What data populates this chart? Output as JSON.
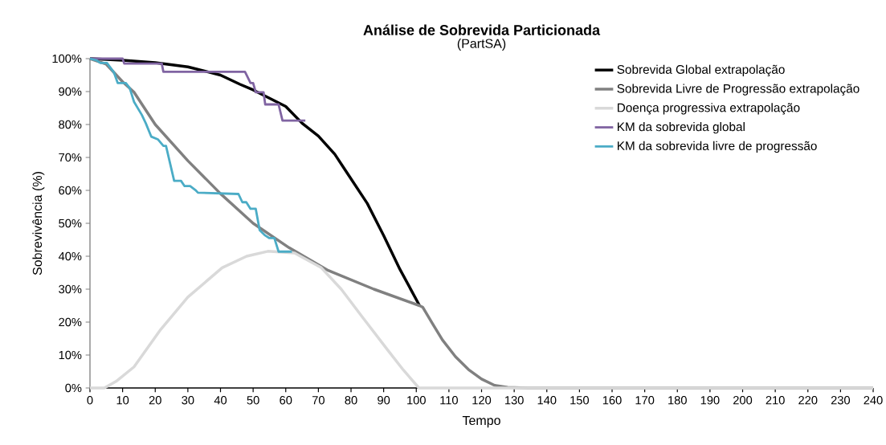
{
  "chart_data": {
    "type": "line",
    "title": "Análise de Sobrevida Particionada",
    "subtitle": "(PartSA)",
    "xlabel": "Tempo",
    "ylabel": "Sobrevivência (%)",
    "xlim": [
      0,
      240
    ],
    "xticks": [
      0,
      10,
      20,
      30,
      40,
      50,
      60,
      70,
      80,
      90,
      100,
      110,
      120,
      130,
      140,
      150,
      160,
      170,
      180,
      190,
      200,
      210,
      220,
      230,
      240
    ],
    "ylim": [
      0,
      100
    ],
    "yticks": [
      {
        "value": 0,
        "label": "0%"
      },
      {
        "value": 10,
        "label": "10%"
      },
      {
        "value": 20,
        "label": "20%"
      },
      {
        "value": 30,
        "label": "30%"
      },
      {
        "value": 40,
        "label": "40%"
      },
      {
        "value": 50,
        "label": "50%"
      },
      {
        "value": 60,
        "label": "60%"
      },
      {
        "value": 70,
        "label": "70%"
      },
      {
        "value": 80,
        "label": "80%"
      },
      {
        "value": 90,
        "label": "90%"
      },
      {
        "value": 100,
        "label": "100%"
      }
    ],
    "grid": false,
    "legend": "top right",
    "marker": "none",
    "line_style": "solid",
    "series": [
      {
        "name": "Sobrevida Global extrapolação",
        "color": "#000000",
        "x": [
          0,
          10,
          20,
          30,
          40,
          46,
          50,
          55,
          60,
          65,
          70,
          75,
          79,
          85,
          90,
          95,
          101
        ],
        "values": [
          100,
          99.5,
          98.8,
          97.5,
          95,
          92.2,
          90.5,
          88,
          85.5,
          80.4,
          76.5,
          71,
          65,
          56,
          46.3,
          36,
          25
        ]
      },
      {
        "name": "Sobrevida Livre de Progressão extrapolação",
        "color": "#808080",
        "x": [
          0,
          5,
          10,
          13.5,
          20,
          30,
          40,
          50,
          61,
          73,
          87,
          101,
          102,
          105,
          108,
          112,
          116,
          120,
          124,
          128,
          134,
          240
        ],
        "values": [
          100,
          98.3,
          93,
          89.8,
          80,
          69,
          59,
          50,
          42.6,
          35.7,
          30,
          25,
          24.5,
          19.5,
          14.6,
          9.5,
          5.6,
          2.7,
          0.8,
          0.2,
          0,
          0
        ]
      },
      {
        "name": "Doença progressiva extrapolação",
        "color": "#d9d9d9",
        "x": [
          0,
          4.4,
          8,
          13.5,
          21.7,
          30,
          40.5,
          48,
          54.5,
          62.7,
          70.9,
          77,
          83.2,
          91.4,
          96,
          100.8,
          240
        ],
        "values": [
          0,
          0,
          2,
          6.4,
          17.8,
          27.6,
          36.5,
          40,
          41.5,
          41,
          36.5,
          30,
          21.9,
          11.3,
          5.5,
          0,
          0
        ]
      },
      {
        "name": "KM da sobrevida global",
        "color": "#8064a2",
        "x": [
          0,
          10,
          10.5,
          22,
          22.5,
          47.5,
          48,
          49.2,
          50,
          50.8,
          53.2,
          53.7,
          57.8,
          59,
          66
        ],
        "values": [
          100,
          100,
          98.5,
          98.5,
          96,
          96,
          95,
          92.6,
          92.6,
          89.8,
          89.8,
          86.1,
          86.1,
          81.2,
          81.2
        ]
      },
      {
        "name": "KM da sobrevida livre de progressão",
        "color": "#4bacc6",
        "x": [
          0,
          2,
          3.2,
          5.2,
          7.3,
          8.5,
          11,
          12.2,
          13.5,
          15.9,
          17.1,
          18.8,
          20.8,
          22.5,
          23.3,
          25.8,
          27.9,
          29,
          30.7,
          32.3,
          33.1,
          45.5,
          46.7,
          47.9,
          49.2,
          50.8,
          52,
          53.7,
          55,
          56.5,
          57.8,
          61.9
        ],
        "values": [
          100,
          99.5,
          98.7,
          98.7,
          95.9,
          92.6,
          92.6,
          91,
          86.9,
          82.9,
          80.4,
          76.3,
          75.5,
          73.5,
          73.5,
          62.9,
          62.9,
          61.3,
          61.3,
          60.1,
          59.3,
          58.9,
          56.4,
          56.4,
          54.4,
          54.4,
          47.9,
          46.3,
          45.5,
          45.5,
          41.4,
          41.4
        ]
      }
    ]
  }
}
